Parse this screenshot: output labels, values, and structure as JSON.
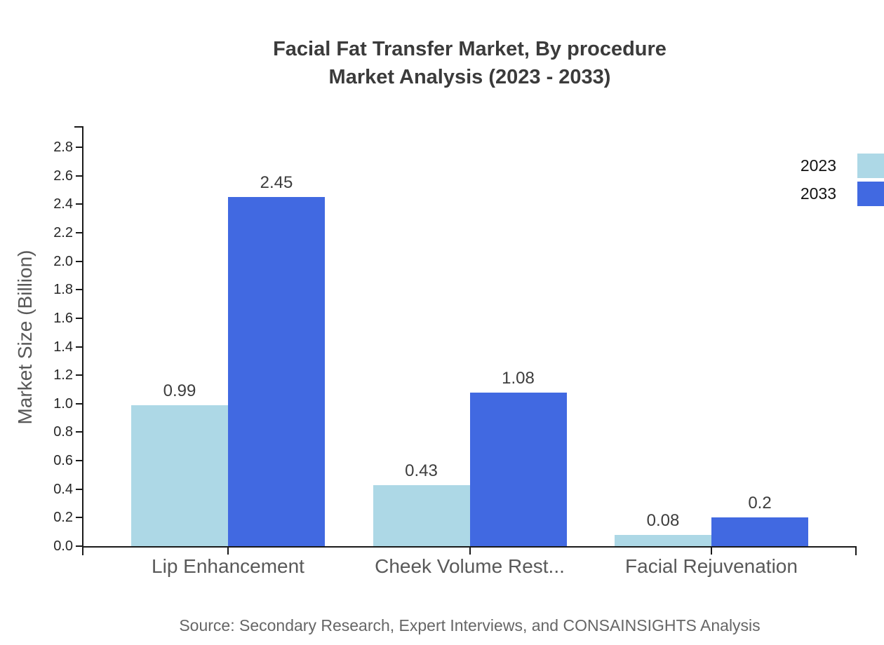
{
  "title": {
    "line1": "Facial Fat Transfer Market, By procedure",
    "line2": "Market Analysis (2023 - 2033)"
  },
  "y_axis": {
    "label": "Market Size (Billion)",
    "tick_labels": [
      "0.0",
      "0.2",
      "0.4",
      "0.6",
      "0.8",
      "1.0",
      "1.2",
      "1.4",
      "1.6",
      "1.8",
      "2.0",
      "2.2",
      "2.4",
      "2.6",
      "2.8"
    ]
  },
  "legend": {
    "items": [
      {
        "label": "2023",
        "color": "#ADD8E6"
      },
      {
        "label": "2033",
        "color": "#4169E1"
      }
    ]
  },
  "source": "Source: Secondary Research, Expert Interviews, and CONSAINSIGHTS Analysis",
  "colors": {
    "series_2023": "#ADD8E6",
    "series_2033": "#4169E1",
    "axis": "#1a1a1a",
    "title_text": "#3b3b3b",
    "category_text": "#595959",
    "tick_text": "#262626",
    "value_text": "#3d3d3d",
    "source_text": "#666666"
  },
  "chart_data": {
    "type": "bar",
    "title": "Facial Fat Transfer Market, By procedure Market Analysis (2023 - 2033)",
    "categories": [
      "Lip Enhancement",
      "Cheek Volume Rest...",
      "Facial Rejuvenation"
    ],
    "series": [
      {
        "name": "2023",
        "color": "#ADD8E6",
        "values": [
          0.99,
          0.43,
          0.08
        ]
      },
      {
        "name": "2033",
        "color": "#4169E1",
        "values": [
          2.45,
          1.08,
          0.2
        ]
      }
    ],
    "value_labels": [
      "0.99",
      "2.45",
      "0.43",
      "1.08",
      "0.08",
      "0.2"
    ],
    "xlabel": "",
    "ylabel": "Market Size (Billion)",
    "ylim": [
      0,
      2.94
    ],
    "ytick_step": 0.2,
    "ytick_max": 2.8,
    "grid": false,
    "legend_position": "outside-top-right",
    "bar_value_labels_shown": true
  }
}
